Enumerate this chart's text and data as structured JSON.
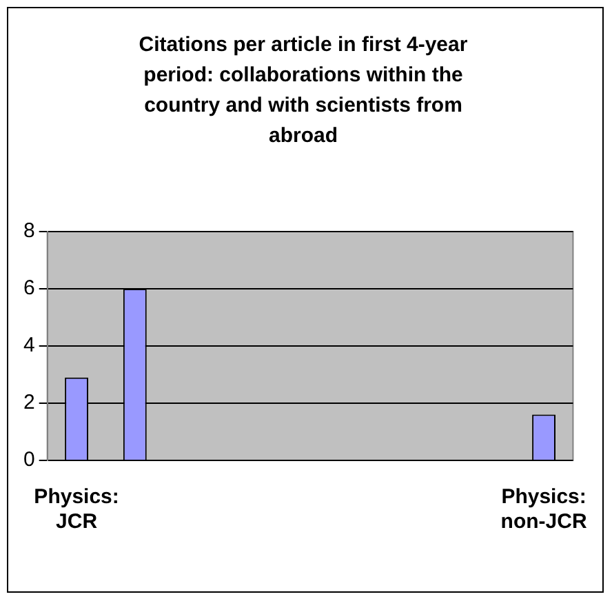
{
  "chart_data": {
    "type": "bar",
    "title": "Citations per article in first 4-year period: collaborations within the country and with scientists from abroad",
    "categories": [
      "Physics: JCR",
      null,
      null,
      null,
      null,
      null,
      null,
      null,
      "Physics: non-JCR"
    ],
    "values": [
      2.9,
      6,
      null,
      null,
      null,
      null,
      null,
      null,
      1.6
    ],
    "color": "#9999ff",
    "ylim": [
      0,
      8
    ],
    "yticks": [
      0,
      2,
      4,
      6,
      8
    ],
    "grid": "y",
    "legend": false
  }
}
